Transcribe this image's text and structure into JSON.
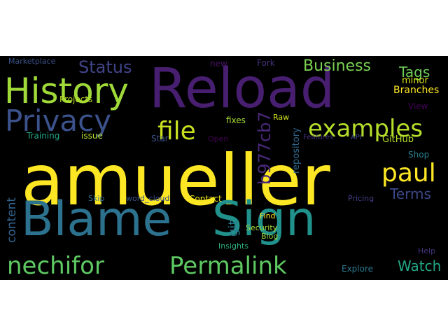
{
  "words": [
    {
      "text": "amueller",
      "color": "#fde725"
    },
    {
      "text": "Blame",
      "color": "#2c728e"
    },
    {
      "text": "Sign",
      "color": "#21918c"
    },
    {
      "text": "Reload",
      "color": "#481f70"
    },
    {
      "text": "History",
      "color": "#a0da39"
    },
    {
      "text": "Privacy",
      "color": "#3b528b"
    },
    {
      "text": "nechifor",
      "color": "#5ec962"
    },
    {
      "text": "Permalink",
      "color": "#5ec962"
    },
    {
      "text": "file",
      "color": "#c8e020"
    },
    {
      "text": "examples",
      "color": "#b5de2b"
    },
    {
      "text": "paul",
      "color": "#fde725"
    },
    {
      "text": "Status",
      "color": "#414487"
    },
    {
      "text": "Business",
      "color": "#7ad151"
    },
    {
      "text": "Tags",
      "color": "#6ece58"
    },
    {
      "text": "Terms",
      "color": "#3e4989"
    },
    {
      "text": "content",
      "color": "#33638d"
    },
    {
      "text": "git",
      "color": "#2a788e"
    },
    {
      "text": "b977cb7",
      "color": "#482878"
    },
    {
      "text": "Watch",
      "color": "#22a884"
    },
    {
      "text": "repository",
      "color": "#31688e"
    },
    {
      "text": "Branches",
      "color": "#fde725"
    },
    {
      "text": "minor",
      "color": "#d8e219"
    },
    {
      "text": "View",
      "color": "#440154"
    },
    {
      "text": "GitHub",
      "color": "#b5de2b"
    },
    {
      "text": "Shop",
      "color": "#277f8e"
    },
    {
      "text": "Marketplace",
      "color": "#3b528b"
    },
    {
      "text": "new",
      "color": "#471365"
    },
    {
      "text": "Fork",
      "color": "#46337e"
    },
    {
      "text": "Projects",
      "color": "#bddf26"
    },
    {
      "text": "Raw",
      "color": "#d2e21b"
    },
    {
      "text": "fixes",
      "color": "#a5db36"
    },
    {
      "text": "Training",
      "color": "#22a884"
    },
    {
      "text": "issue",
      "color": "#b5de2b"
    },
    {
      "text": "Star",
      "color": "#3b528b"
    },
    {
      "text": "Open",
      "color": "#440154"
    },
    {
      "text": "Features",
      "color": "#46337e"
    },
    {
      "text": "API",
      "color": "#3e4989"
    },
    {
      "text": "Skip",
      "color": "#2e6e8e"
    },
    {
      "text": "word_cloud",
      "color": "#3b528b"
    },
    {
      "text": "Contact",
      "color": "#ece51b"
    },
    {
      "text": "Find",
      "color": "#fde725"
    },
    {
      "text": "Security",
      "color": "#a5db36"
    },
    {
      "text": "Blog",
      "color": "#8fd744"
    },
    {
      "text": "Insights",
      "color": "#2fb47c"
    },
    {
      "text": "Pricing",
      "color": "#433e85"
    },
    {
      "text": "Help",
      "color": "#46337e"
    },
    {
      "text": "Explore",
      "color": "#2a788e"
    }
  ]
}
